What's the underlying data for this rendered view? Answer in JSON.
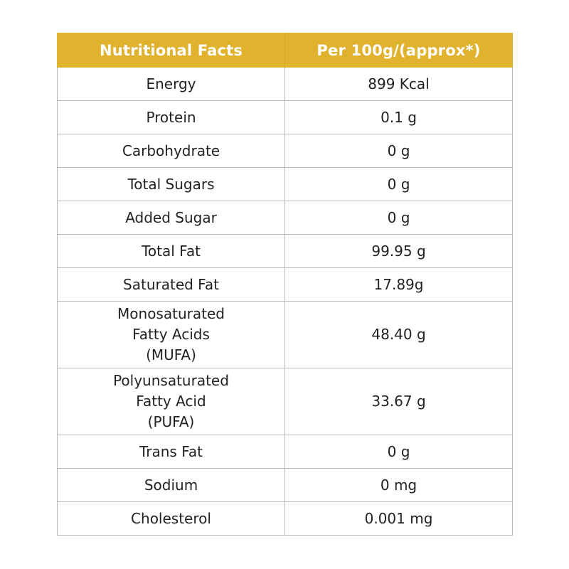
{
  "table": {
    "header": {
      "nutrient": "Nutritional Facts",
      "value": "Per 100g/(approx*)",
      "color": "#e1b22e"
    },
    "rows": [
      {
        "nutrient": "Energy",
        "value": "899 Kcal"
      },
      {
        "nutrient": "Protein",
        "value": "0.1 g"
      },
      {
        "nutrient": "Carbohydrate",
        "value": "0 g"
      },
      {
        "nutrient": "Total Sugars",
        "value": "0 g"
      },
      {
        "nutrient": "Added Sugar",
        "value": "0 g"
      },
      {
        "nutrient": "Total Fat",
        "value": "99.95 g"
      },
      {
        "nutrient": "Saturated Fat",
        "value": "17.89g"
      },
      {
        "nutrient_lines": [
          "Monosaturated",
          "Fatty Acids",
          "(MUFA)"
        ],
        "value": "48.40 g"
      },
      {
        "nutrient_lines": [
          "Polyunsaturated",
          "Fatty Acid",
          "(PUFA)"
        ],
        "value": "33.67 g"
      },
      {
        "nutrient": "Trans Fat",
        "value": "0 g"
      },
      {
        "nutrient": "Sodium",
        "value": "0 mg"
      },
      {
        "nutrient": "Cholesterol",
        "value": "0.001 mg"
      }
    ]
  }
}
